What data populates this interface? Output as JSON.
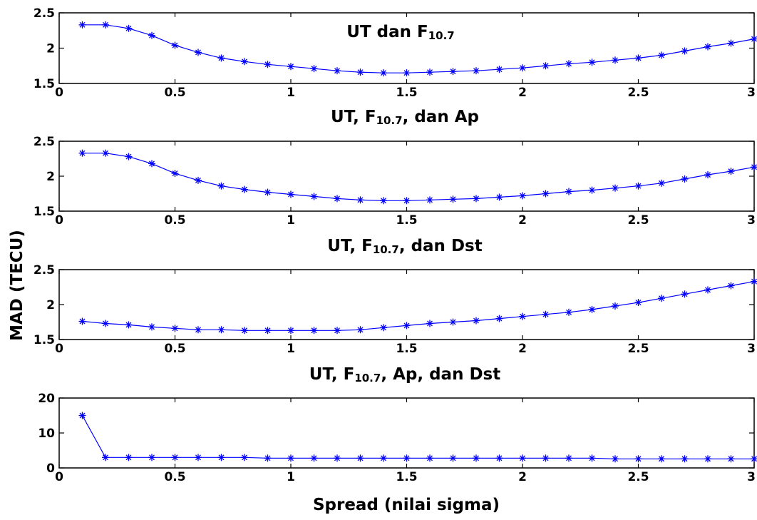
{
  "figure": {
    "ylabel": "MAD (TECU)",
    "xlabel": "Spread (nilai sigma)"
  },
  "chart_data": [
    {
      "type": "line",
      "title": {
        "main": "UT dan F",
        "sub": "10.7",
        "rest": ""
      },
      "xlim": [
        0,
        3
      ],
      "ylim": [
        1.5,
        2.5
      ],
      "xticks": [
        "0",
        "0.5",
        "1",
        "1.5",
        "2",
        "2.5",
        "3"
      ],
      "yticks": [
        "1.5",
        "2",
        "2.5"
      ],
      "marker": "asterisk",
      "color": "#0000ff",
      "x": [
        0.1,
        0.2,
        0.3,
        0.4,
        0.5,
        0.6,
        0.7,
        0.8,
        0.9,
        1.0,
        1.1,
        1.2,
        1.3,
        1.4,
        1.5,
        1.6,
        1.7,
        1.8,
        1.9,
        2.0,
        2.1,
        2.2,
        2.3,
        2.4,
        2.5,
        2.6,
        2.7,
        2.8,
        2.9,
        3.0
      ],
      "y": [
        2.33,
        2.33,
        2.28,
        2.18,
        2.04,
        1.94,
        1.86,
        1.81,
        1.77,
        1.74,
        1.71,
        1.68,
        1.66,
        1.65,
        1.65,
        1.66,
        1.67,
        1.68,
        1.7,
        1.72,
        1.75,
        1.78,
        1.8,
        1.83,
        1.86,
        1.9,
        1.96,
        2.02,
        2.07,
        2.13
      ]
    },
    {
      "type": "line",
      "title": {
        "main": "UT, F",
        "sub": "10.7",
        "rest": ", dan Ap"
      },
      "xlim": [
        0,
        3
      ],
      "ylim": [
        1.5,
        2.5
      ],
      "xticks": [
        "0",
        "0.5",
        "1",
        "1.5",
        "2",
        "2.5",
        "3"
      ],
      "yticks": [
        "1.5",
        "2",
        "2.5"
      ],
      "marker": "asterisk",
      "color": "#0000ff",
      "x": [
        0.1,
        0.2,
        0.3,
        0.4,
        0.5,
        0.6,
        0.7,
        0.8,
        0.9,
        1.0,
        1.1,
        1.2,
        1.3,
        1.4,
        1.5,
        1.6,
        1.7,
        1.8,
        1.9,
        2.0,
        2.1,
        2.2,
        2.3,
        2.4,
        2.5,
        2.6,
        2.7,
        2.8,
        2.9,
        3.0
      ],
      "y": [
        2.33,
        2.33,
        2.28,
        2.18,
        2.04,
        1.94,
        1.86,
        1.81,
        1.77,
        1.74,
        1.71,
        1.68,
        1.66,
        1.65,
        1.65,
        1.66,
        1.67,
        1.68,
        1.7,
        1.72,
        1.75,
        1.78,
        1.8,
        1.83,
        1.86,
        1.9,
        1.96,
        2.02,
        2.07,
        2.13
      ]
    },
    {
      "type": "line",
      "title": {
        "main": "UT, F",
        "sub": "10.7",
        "rest": ", dan Dst"
      },
      "xlim": [
        0,
        3
      ],
      "ylim": [
        1.5,
        2.5
      ],
      "xticks": [
        "0",
        "0.5",
        "1",
        "1.5",
        "2",
        "2.5",
        "3"
      ],
      "yticks": [
        "1.5",
        "2",
        "2.5"
      ],
      "marker": "asterisk",
      "color": "#0000ff",
      "x": [
        0.1,
        0.2,
        0.3,
        0.4,
        0.5,
        0.6,
        0.7,
        0.8,
        0.9,
        1.0,
        1.1,
        1.2,
        1.3,
        1.4,
        1.5,
        1.6,
        1.7,
        1.8,
        1.9,
        2.0,
        2.1,
        2.2,
        2.3,
        2.4,
        2.5,
        2.6,
        2.7,
        2.8,
        2.9,
        3.0
      ],
      "y": [
        1.76,
        1.73,
        1.71,
        1.68,
        1.66,
        1.64,
        1.64,
        1.63,
        1.63,
        1.63,
        1.63,
        1.63,
        1.64,
        1.67,
        1.7,
        1.73,
        1.75,
        1.77,
        1.8,
        1.83,
        1.86,
        1.89,
        1.93,
        1.98,
        2.03,
        2.09,
        2.15,
        2.21,
        2.27,
        2.33
      ]
    },
    {
      "type": "line",
      "title": {
        "main": "UT, F",
        "sub": "10.7",
        "rest": ", Ap, dan Dst"
      },
      "xlim": [
        0,
        3
      ],
      "ylim": [
        0,
        20
      ],
      "xticks": [
        "0",
        "0.5",
        "1",
        "1.5",
        "2",
        "2.5",
        "3"
      ],
      "yticks": [
        "0",
        "10",
        "20"
      ],
      "marker": "asterisk",
      "color": "#0000ff",
      "x": [
        0.1,
        0.2,
        0.3,
        0.4,
        0.5,
        0.6,
        0.7,
        0.8,
        0.9,
        1.0,
        1.1,
        1.2,
        1.3,
        1.4,
        1.5,
        1.6,
        1.7,
        1.8,
        1.9,
        2.0,
        2.1,
        2.2,
        2.3,
        2.4,
        2.5,
        2.6,
        2.7,
        2.8,
        2.9,
        3.0
      ],
      "y": [
        15.0,
        3.0,
        3.0,
        3.0,
        3.0,
        3.0,
        3.0,
        3.0,
        2.8,
        2.8,
        2.8,
        2.8,
        2.8,
        2.8,
        2.8,
        2.8,
        2.8,
        2.8,
        2.8,
        2.8,
        2.8,
        2.8,
        2.8,
        2.6,
        2.6,
        2.6,
        2.6,
        2.6,
        2.6,
        2.6
      ]
    }
  ]
}
